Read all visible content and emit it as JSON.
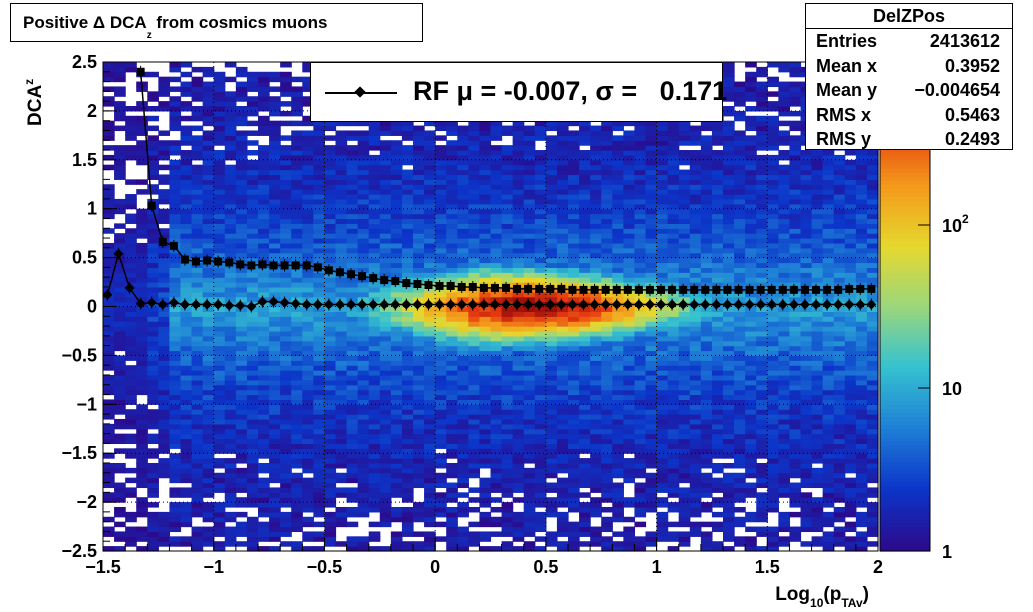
{
  "title": {
    "prefix": "Positive Δ DCA",
    "sub": "z",
    "suffix": " from cosmics muons"
  },
  "stats": {
    "name": "DelZPos",
    "rows": [
      {
        "key": "Entries",
        "value": "2413612"
      },
      {
        "key": "Mean x",
        "value": "0.3952"
      },
      {
        "key": "Mean y",
        "value": "−0.004654"
      },
      {
        "key": "RMS x",
        "value": "0.5463"
      },
      {
        "key": "RMS y",
        "value": "0.2493"
      }
    ]
  },
  "legend": {
    "label": "RF μ = -0.007, σ =   0.171"
  },
  "colors": {
    "frame": "#000000",
    "grid": "#000000",
    "palette": [
      "#2b0a8c",
      "#0c35c9",
      "#1e7fd6",
      "#35c1d0",
      "#9ad77d",
      "#e6d82e",
      "#f49a1b",
      "#e53a10",
      "#9a0f0a"
    ]
  },
  "chart_data": {
    "type": "heatmap",
    "xlabel": "Log10(pTAv)",
    "ylabel": "DCAz",
    "xlim": [
      -1.5,
      2
    ],
    "ylim": [
      -2.5,
      2.5
    ],
    "x_ticks": [
      "−1.5",
      "−1",
      "−0.5",
      "0",
      "0.5",
      "1",
      "1.5",
      "2"
    ],
    "x_tick_values": [
      -1.5,
      -1,
      -0.5,
      0,
      0.5,
      1,
      1.5,
      2
    ],
    "y_ticks": [
      "−2.5",
      "−2",
      "−1.5",
      "−1",
      "−0.5",
      "0",
      "0.5",
      "1",
      "1.5",
      "2",
      "2.5"
    ],
    "y_tick_values": [
      -2.5,
      -2,
      -1.5,
      -1,
      -0.5,
      0,
      0.5,
      1,
      1.5,
      2,
      2.5
    ],
    "grid": true,
    "color_scale": "log",
    "color_axis_labels": [
      {
        "label": "1",
        "value": 1
      },
      {
        "label": "10",
        "value": 10
      },
      {
        "label": "10",
        "exp": "2",
        "value": 100
      }
    ],
    "color_range": [
      1,
      1000
    ],
    "series": [
      {
        "name": "",
        "marker": "square",
        "x": [
          -1.33,
          -1.28,
          -1.23,
          -1.18,
          -1.13,
          -1.08,
          -1.03,
          -0.98,
          -0.93,
          -0.88,
          -0.83,
          -0.78,
          -0.73,
          -0.68,
          -0.63,
          -0.58,
          -0.53,
          -0.48,
          -0.43,
          -0.38,
          -0.33,
          -0.28,
          -0.23,
          -0.18,
          -0.13,
          -0.08,
          -0.03,
          0.02,
          0.07,
          0.12,
          0.17,
          0.22,
          0.27,
          0.32,
          0.37,
          0.42,
          0.47,
          0.52,
          0.57,
          0.62,
          0.67,
          0.72,
          0.77,
          0.82,
          0.87,
          0.92,
          0.97,
          1.02,
          1.07,
          1.12,
          1.17,
          1.22,
          1.27,
          1.32,
          1.37,
          1.42,
          1.47,
          1.52,
          1.57,
          1.62,
          1.67,
          1.72,
          1.77,
          1.82,
          1.87,
          1.92,
          1.97
        ],
        "y": [
          2.4,
          1.03,
          0.66,
          0.62,
          0.48,
          0.46,
          0.47,
          0.46,
          0.45,
          0.43,
          0.42,
          0.43,
          0.42,
          0.42,
          0.42,
          0.42,
          0.4,
          0.37,
          0.35,
          0.33,
          0.31,
          0.29,
          0.27,
          0.26,
          0.24,
          0.23,
          0.22,
          0.21,
          0.21,
          0.2,
          0.2,
          0.19,
          0.19,
          0.19,
          0.18,
          0.18,
          0.18,
          0.18,
          0.18,
          0.17,
          0.17,
          0.17,
          0.17,
          0.17,
          0.17,
          0.17,
          0.17,
          0.17,
          0.17,
          0.17,
          0.17,
          0.17,
          0.17,
          0.17,
          0.17,
          0.17,
          0.17,
          0.17,
          0.17,
          0.17,
          0.17,
          0.17,
          0.17,
          0.17,
          0.18,
          0.18,
          0.18
        ]
      },
      {
        "name": "RF",
        "marker": "diamond",
        "x": [
          -1.48,
          -1.43,
          -1.38,
          -1.33,
          -1.28,
          -1.23,
          -1.18,
          -1.13,
          -1.08,
          -1.03,
          -0.98,
          -0.93,
          -0.88,
          -0.83,
          -0.78,
          -0.73,
          -0.68,
          -0.63,
          -0.58,
          -0.53,
          -0.48,
          -0.43,
          -0.38,
          -0.33,
          -0.28,
          -0.23,
          -0.18,
          -0.13,
          -0.08,
          -0.03,
          0.02,
          0.07,
          0.12,
          0.17,
          0.22,
          0.27,
          0.32,
          0.37,
          0.42,
          0.47,
          0.52,
          0.57,
          0.62,
          0.67,
          0.72,
          0.77,
          0.82,
          0.87,
          0.92,
          0.97,
          1.02,
          1.07,
          1.12,
          1.17,
          1.22,
          1.27,
          1.32,
          1.37,
          1.42,
          1.47,
          1.52,
          1.57,
          1.62,
          1.67,
          1.72,
          1.77,
          1.82,
          1.87,
          1.92,
          1.97
        ],
        "y": [
          0.12,
          0.54,
          0.19,
          0.03,
          0.04,
          0.02,
          0.04,
          0.02,
          0.02,
          0.02,
          0.02,
          0.01,
          0.01,
          0.0,
          0.05,
          0.05,
          0.04,
          0.03,
          0.02,
          0.02,
          0.02,
          0.02,
          0.02,
          0.02,
          0.02,
          0.02,
          0.02,
          0.02,
          0.02,
          0.02,
          0.02,
          0.02,
          0.02,
          0.02,
          0.02,
          0.02,
          0.02,
          0.02,
          0.02,
          0.02,
          0.02,
          0.02,
          0.02,
          0.02,
          0.02,
          0.02,
          0.02,
          0.02,
          0.02,
          0.02,
          0.02,
          0.02,
          0.02,
          0.02,
          0.02,
          0.02,
          0.02,
          0.02,
          0.02,
          0.02,
          0.02,
          0.02,
          0.02,
          0.02,
          0.02,
          0.02,
          0.02,
          0.02,
          0.02,
          0.02
        ]
      }
    ]
  }
}
